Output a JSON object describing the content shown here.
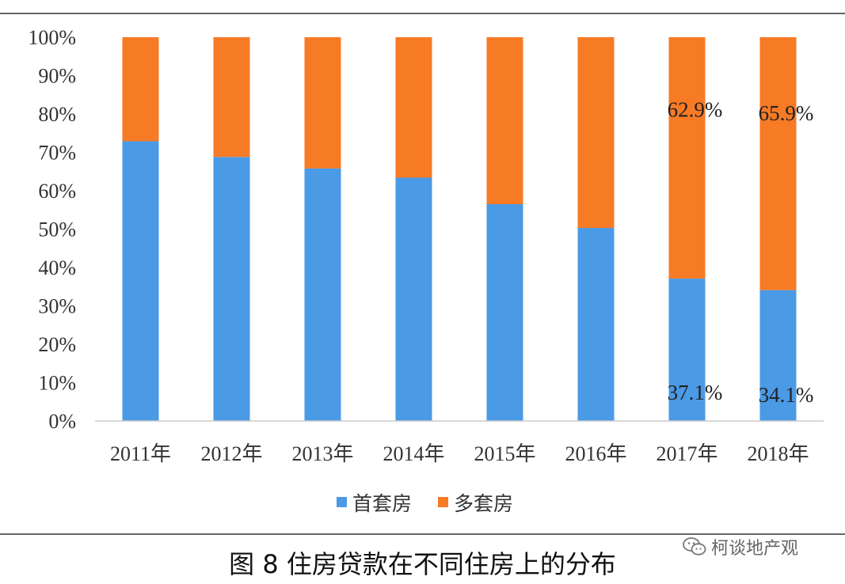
{
  "chart_data": {
    "type": "bar",
    "stacked": true,
    "categories": [
      "2011年",
      "2012年",
      "2013年",
      "2014年",
      "2015年",
      "2016年",
      "2017年",
      "2018年"
    ],
    "series": [
      {
        "name": "首套房",
        "color": "#4a9ae6",
        "values": [
          72.9,
          68.8,
          65.8,
          63.4,
          56.5,
          50.3,
          37.1,
          34.1
        ]
      },
      {
        "name": "多套房",
        "color": "#f77a25",
        "values": [
          27.1,
          31.2,
          34.2,
          36.6,
          43.5,
          49.7,
          62.9,
          65.9
        ]
      }
    ],
    "y_ticks": [
      "0%",
      "10%",
      "20%",
      "30%",
      "40%",
      "50%",
      "60%",
      "70%",
      "80%",
      "90%",
      "100%"
    ],
    "ylim": [
      0,
      100
    ],
    "grid": false,
    "legend_position": "bottom",
    "data_labels": [
      {
        "category": "2017年",
        "series": "多套房",
        "text": "62.9%"
      },
      {
        "category": "2018年",
        "series": "多套房",
        "text": "65.9%"
      },
      {
        "category": "2017年",
        "series": "首套房",
        "text": "37.1%"
      },
      {
        "category": "2018年",
        "series": "首套房",
        "text": "34.1%"
      }
    ]
  },
  "caption": "图 8 住房贷款在不同住房上的分布",
  "watermark": {
    "icon": "wechat-icon",
    "text": "柯谈地产观"
  }
}
